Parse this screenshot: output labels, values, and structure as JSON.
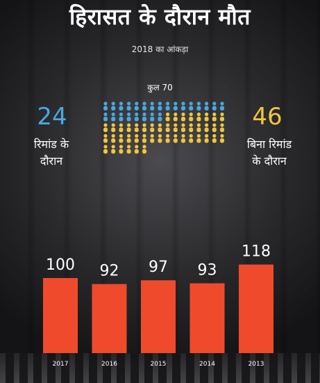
{
  "title": "हिरासत के दौरान मौत",
  "subtitle": "2018 का आंकड़ा",
  "total_label": "कुल 70",
  "remand": {
    "count": "24",
    "label_line1": "रिमांड के",
    "label_line2": "दौरान",
    "color": "#4aa8e0"
  },
  "no_remand": {
    "count": "46",
    "label_line1": "बिना रिमांड",
    "label_line2": "के दौरान",
    "color": "#f0c640"
  },
  "icon_names": {
    "person": "person-icon"
  },
  "chart_data": {
    "type": "bar",
    "categories": [
      "2017",
      "2016",
      "2015",
      "2014",
      "2013"
    ],
    "values": [
      100,
      92,
      97,
      93,
      118
    ],
    "title": "",
    "xlabel": "",
    "ylabel": "",
    "ylim": [
      0,
      130
    ],
    "bar_color": "#f04a2c",
    "grid": false
  }
}
